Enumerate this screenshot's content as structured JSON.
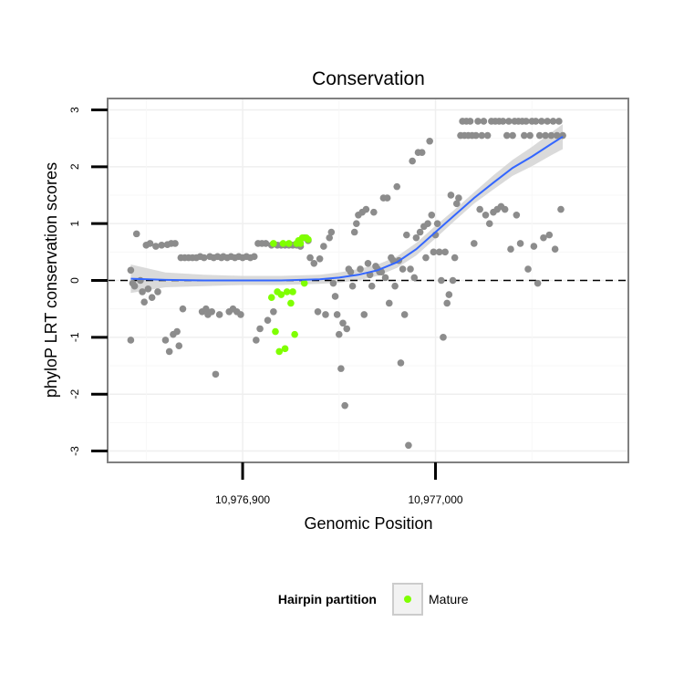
{
  "chart_data": {
    "type": "scatter",
    "title": "Conservation",
    "xlabel": "Genomic Position",
    "ylabel": "phyloP LRT conservation scores",
    "xlim": [
      10976830,
      10977100
    ],
    "ylim": [
      -3.2,
      3.2
    ],
    "x_ticks": [
      10976900,
      10977000
    ],
    "x_tick_labels": [
      "10,976,900",
      "10,977,000"
    ],
    "y_ticks": [
      -3,
      -2,
      -1,
      0,
      1,
      2,
      3
    ],
    "y_tick_labels": [
      "-3",
      "-2",
      "-1",
      "0",
      "1",
      "2",
      "3"
    ],
    "reference_line": {
      "y": 0,
      "style": "dashed"
    },
    "grid": true,
    "colors": {
      "points": "#8c8c8c",
      "mature": "#7fff00",
      "trend": "#3366ff",
      "band": "#d3d3d3",
      "panel_border": "#808080"
    },
    "legend": {
      "title": "Hairpin partition",
      "entries": [
        "Mature"
      ],
      "placement": "bottom"
    },
    "series": [
      {
        "key": "other",
        "points": [
          [
            10976842,
            -1.05
          ],
          [
            10976842,
            0.18
          ],
          [
            10976843,
            -0.05
          ],
          [
            10976844,
            -0.1
          ],
          [
            10976845,
            0.82
          ],
          [
            10976847,
            0.0
          ],
          [
            10976848,
            -0.2
          ],
          [
            10976849,
            -0.38
          ],
          [
            10976850,
            0.62
          ],
          [
            10976851,
            -0.15
          ],
          [
            10976852,
            0.65
          ],
          [
            10976853,
            -0.3
          ],
          [
            10976855,
            0.6
          ],
          [
            10976856,
            -0.2
          ],
          [
            10976858,
            0.62
          ],
          [
            10976860,
            -1.05
          ],
          [
            10976861,
            0.63
          ],
          [
            10976862,
            -1.25
          ],
          [
            10976863,
            0.65
          ],
          [
            10976864,
            -0.95
          ],
          [
            10976865,
            0.65
          ],
          [
            10976866,
            -0.9
          ],
          [
            10976867,
            -1.15
          ],
          [
            10976868,
            0.4
          ],
          [
            10976869,
            -0.5
          ],
          [
            10976870,
            0.4
          ],
          [
            10976872,
            0.4
          ],
          [
            10976874,
            0.4
          ],
          [
            10976876,
            0.4
          ],
          [
            10976878,
            0.42
          ],
          [
            10976879,
            -0.55
          ],
          [
            10976880,
            0.4
          ],
          [
            10976881,
            -0.5
          ],
          [
            10976882,
            -0.6
          ],
          [
            10976883,
            0.42
          ],
          [
            10976884,
            -0.55
          ],
          [
            10976885,
            0.4
          ],
          [
            10976886,
            -1.65
          ],
          [
            10976887,
            0.42
          ],
          [
            10976888,
            -0.6
          ],
          [
            10976889,
            0.4
          ],
          [
            10976890,
            0.42
          ],
          [
            10976892,
            0.4
          ],
          [
            10976893,
            -0.55
          ],
          [
            10976894,
            0.42
          ],
          [
            10976895,
            -0.5
          ],
          [
            10976896,
            0.4
          ],
          [
            10976897,
            -0.55
          ],
          [
            10976898,
            0.42
          ],
          [
            10976899,
            -0.6
          ],
          [
            10976900,
            0.4
          ],
          [
            10976902,
            0.42
          ],
          [
            10976904,
            0.4
          ],
          [
            10976906,
            0.42
          ],
          [
            10976907,
            -1.05
          ],
          [
            10976908,
            0.65
          ],
          [
            10976909,
            -0.85
          ],
          [
            10976910,
            0.65
          ],
          [
            10976912,
            0.65
          ],
          [
            10976913,
            -0.7
          ],
          [
            10976915,
            0.62
          ],
          [
            10976916,
            -0.55
          ],
          [
            10976918,
            0.62
          ],
          [
            10976920,
            0.62
          ],
          [
            10976922,
            0.62
          ],
          [
            10976924,
            0.62
          ],
          [
            10976926,
            0.62
          ],
          [
            10976928,
            0.62
          ],
          [
            10976930,
            0.6
          ],
          [
            10976932,
            0.75
          ],
          [
            10976934,
            0.7
          ],
          [
            10976935,
            0.4
          ],
          [
            10976937,
            0.3
          ],
          [
            10976939,
            -0.55
          ],
          [
            10976940,
            0.38
          ],
          [
            10976942,
            0.6
          ],
          [
            10976943,
            -0.6
          ],
          [
            10976945,
            0.75
          ],
          [
            10976946,
            0.85
          ],
          [
            10976947,
            -0.05
          ],
          [
            10976948,
            -0.28
          ],
          [
            10976949,
            -0.6
          ],
          [
            10976950,
            -0.95
          ],
          [
            10976951,
            -1.55
          ],
          [
            10976952,
            -0.75
          ],
          [
            10976953,
            -2.2
          ],
          [
            10976954,
            -0.85
          ],
          [
            10976955,
            0.2
          ],
          [
            10976956,
            0.15
          ],
          [
            10976957,
            -0.1
          ],
          [
            10976958,
            0.85
          ],
          [
            10976959,
            1.0
          ],
          [
            10976960,
            1.15
          ],
          [
            10976961,
            0.2
          ],
          [
            10976962,
            1.2
          ],
          [
            10976963,
            -0.6
          ],
          [
            10976964,
            1.25
          ],
          [
            10976965,
            0.3
          ],
          [
            10976966,
            0.1
          ],
          [
            10976967,
            -0.1
          ],
          [
            10976968,
            1.2
          ],
          [
            10976969,
            0.25
          ],
          [
            10976970,
            0.2
          ],
          [
            10976971,
            0.15
          ],
          [
            10976972,
            0.15
          ],
          [
            10976973,
            1.45
          ],
          [
            10976974,
            0.05
          ],
          [
            10976975,
            1.45
          ],
          [
            10976976,
            -0.4
          ],
          [
            10976977,
            0.4
          ],
          [
            10976978,
            0.35
          ],
          [
            10976979,
            -0.1
          ],
          [
            10976980,
            1.65
          ],
          [
            10976981,
            0.35
          ],
          [
            10976982,
            -1.45
          ],
          [
            10976983,
            0.2
          ],
          [
            10976984,
            -0.6
          ],
          [
            10976985,
            0.8
          ],
          [
            10976986,
            -2.9
          ],
          [
            10976987,
            0.2
          ],
          [
            10976988,
            2.1
          ],
          [
            10976989,
            0.05
          ],
          [
            10976990,
            0.75
          ],
          [
            10976991,
            2.25
          ],
          [
            10976992,
            0.85
          ],
          [
            10976993,
            2.25
          ],
          [
            10976994,
            0.95
          ],
          [
            10976995,
            0.4
          ],
          [
            10976996,
            1.0
          ],
          [
            10976997,
            2.45
          ],
          [
            10976998,
            1.15
          ],
          [
            10976999,
            0.5
          ],
          [
            10977000,
            0.8
          ],
          [
            10977001,
            1.0
          ],
          [
            10977002,
            0.5
          ],
          [
            10977003,
            0.0
          ],
          [
            10977004,
            -1.0
          ],
          [
            10977005,
            0.5
          ],
          [
            10977006,
            -0.4
          ],
          [
            10977007,
            -0.25
          ],
          [
            10977008,
            1.5
          ],
          [
            10977009,
            0.0
          ],
          [
            10977010,
            0.4
          ],
          [
            10977011,
            1.35
          ],
          [
            10977012,
            1.45
          ],
          [
            10977013,
            2.55
          ],
          [
            10977014,
            2.8
          ],
          [
            10977015,
            2.55
          ],
          [
            10977016,
            2.8
          ],
          [
            10977017,
            2.55
          ],
          [
            10977018,
            2.8
          ],
          [
            10977019,
            2.55
          ],
          [
            10977020,
            0.65
          ],
          [
            10977021,
            2.55
          ],
          [
            10977022,
            2.8
          ],
          [
            10977023,
            1.25
          ],
          [
            10977024,
            2.55
          ],
          [
            10977025,
            2.8
          ],
          [
            10977026,
            1.15
          ],
          [
            10977027,
            2.55
          ],
          [
            10977028,
            1.0
          ],
          [
            10977029,
            2.8
          ],
          [
            10977030,
            1.2
          ],
          [
            10977031,
            2.8
          ],
          [
            10977032,
            1.25
          ],
          [
            10977033,
            2.8
          ],
          [
            10977034,
            1.3
          ],
          [
            10977035,
            2.8
          ],
          [
            10977036,
            1.25
          ],
          [
            10977037,
            2.55
          ],
          [
            10977038,
            2.8
          ],
          [
            10977039,
            0.55
          ],
          [
            10977040,
            2.55
          ],
          [
            10977041,
            2.8
          ],
          [
            10977042,
            1.15
          ],
          [
            10977043,
            2.8
          ],
          [
            10977044,
            0.65
          ],
          [
            10977045,
            2.8
          ],
          [
            10977046,
            2.55
          ],
          [
            10977047,
            2.8
          ],
          [
            10977048,
            0.2
          ],
          [
            10977049,
            2.55
          ],
          [
            10977050,
            2.8
          ],
          [
            10977051,
            0.6
          ],
          [
            10977052,
            2.8
          ],
          [
            10977053,
            -0.05
          ],
          [
            10977054,
            2.55
          ],
          [
            10977055,
            2.8
          ],
          [
            10977056,
            0.75
          ],
          [
            10977057,
            2.55
          ],
          [
            10977058,
            2.8
          ],
          [
            10977059,
            0.8
          ],
          [
            10977060,
            2.55
          ],
          [
            10977061,
            2.8
          ],
          [
            10977062,
            0.55
          ],
          [
            10977063,
            2.55
          ],
          [
            10977064,
            2.8
          ],
          [
            10977065,
            1.25
          ],
          [
            10977066,
            2.55
          ]
        ]
      },
      {
        "key": "mature",
        "name": "Mature",
        "points": [
          [
            10976915,
            -0.3
          ],
          [
            10976916,
            0.65
          ],
          [
            10976917,
            -0.9
          ],
          [
            10976918,
            -0.2
          ],
          [
            10976919,
            -1.25
          ],
          [
            10976920,
            -0.25
          ],
          [
            10976921,
            0.65
          ],
          [
            10976922,
            -1.2
          ],
          [
            10976923,
            -0.2
          ],
          [
            10976924,
            0.65
          ],
          [
            10976925,
            -0.4
          ],
          [
            10976926,
            -0.2
          ],
          [
            10976927,
            -0.95
          ],
          [
            10976928,
            0.65
          ],
          [
            10976929,
            0.7
          ],
          [
            10976930,
            0.65
          ],
          [
            10976931,
            0.75
          ],
          [
            10976932,
            -0.05
          ],
          [
            10976933,
            0.75
          ],
          [
            10976934,
            0.72
          ]
        ]
      }
    ],
    "trend": {
      "method": "smooth",
      "x": [
        10976842,
        10976860,
        10976880,
        10976900,
        10976920,
        10976940,
        10976950,
        10976960,
        10976970,
        10976980,
        10976990,
        10977000,
        10977010,
        10977020,
        10977030,
        10977040,
        10977050,
        10977060,
        10977066
      ],
      "y": [
        0.03,
        0.01,
        0.0,
        0.0,
        0.0,
        0.02,
        0.05,
        0.1,
        0.18,
        0.32,
        0.55,
        0.85,
        1.15,
        1.45,
        1.72,
        1.98,
        2.18,
        2.4,
        2.53
      ],
      "band_upper": [
        0.28,
        0.14,
        0.1,
        0.08,
        0.08,
        0.1,
        0.14,
        0.2,
        0.28,
        0.42,
        0.66,
        0.96,
        1.25,
        1.55,
        1.85,
        2.12,
        2.35,
        2.6,
        2.75
      ],
      "band_lower": [
        -0.22,
        -0.12,
        -0.1,
        -0.08,
        -0.08,
        -0.06,
        -0.04,
        0.0,
        0.08,
        0.22,
        0.44,
        0.74,
        1.05,
        1.35,
        1.6,
        1.84,
        2.01,
        2.2,
        2.31
      ]
    }
  }
}
